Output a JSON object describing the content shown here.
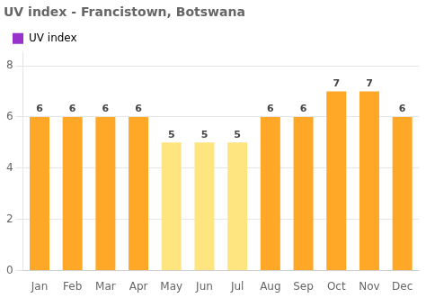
{
  "chart_data": {
    "type": "bar",
    "title": "UV index - Francistown, Botswana",
    "categories": [
      "Jan",
      "Feb",
      "Mar",
      "Apr",
      "May",
      "Jun",
      "Jul",
      "Aug",
      "Sep",
      "Oct",
      "Nov",
      "Dec"
    ],
    "series": [
      {
        "name": "UV index",
        "color": "#9932CC",
        "colors": [
          "#FFA726",
          "#FFA726",
          "#FFA726",
          "#FFA726",
          "#FFE57F",
          "#FFE57F",
          "#FFE57F",
          "#FFA726",
          "#FFA726",
          "#FFA726",
          "#FFA726",
          "#FFA726"
        ],
        "values": [
          6,
          6,
          6,
          6,
          5,
          5,
          5,
          6,
          6,
          7,
          7,
          6
        ]
      }
    ],
    "ylim": [
      0,
      8.5
    ],
    "yticks": [
      0,
      2,
      4,
      6,
      8
    ],
    "grid": true,
    "legend": "upper left",
    "data_labels": true
  }
}
